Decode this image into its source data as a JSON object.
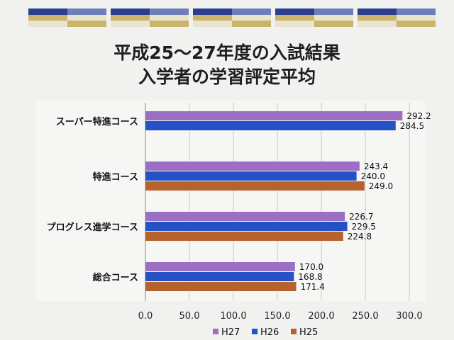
{
  "title_lines": [
    "平成25～27年度の入試結果",
    "入学者の学習評定平均"
  ],
  "chart_data": {
    "type": "bar",
    "orientation": "horizontal",
    "categories": [
      "スーパー特進コース",
      "特進コース",
      "プログレス進学コース",
      "総合コース"
    ],
    "series": [
      {
        "name": "H27",
        "color": "#9b6fc4",
        "values": [
          292.2,
          243.4,
          226.7,
          170.0
        ]
      },
      {
        "name": "H26",
        "color": "#2452c4",
        "values": [
          284.5,
          240.0,
          229.5,
          168.8
        ]
      },
      {
        "name": "H25",
        "color": "#b5622d",
        "values": [
          null,
          249.0,
          224.8,
          171.4
        ]
      }
    ],
    "xlim": [
      0,
      300
    ],
    "xticks": [
      "0.0",
      "50.0",
      "100.0",
      "150.0",
      "200.0",
      "250.0",
      "300.0"
    ],
    "value_labels": [
      [
        "292.2",
        "243.4",
        "226.7",
        "170.0"
      ],
      [
        "284.5",
        "240.0",
        "229.5",
        "168.8"
      ],
      [
        "",
        "249.0",
        "224.8",
        "171.4"
      ]
    ],
    "legend_position": "bottom",
    "grid": "vertical"
  },
  "decor_colors": [
    "#2b3f8c",
    "#c9b46a",
    "#e8e4d0",
    "#6e7fb8"
  ]
}
